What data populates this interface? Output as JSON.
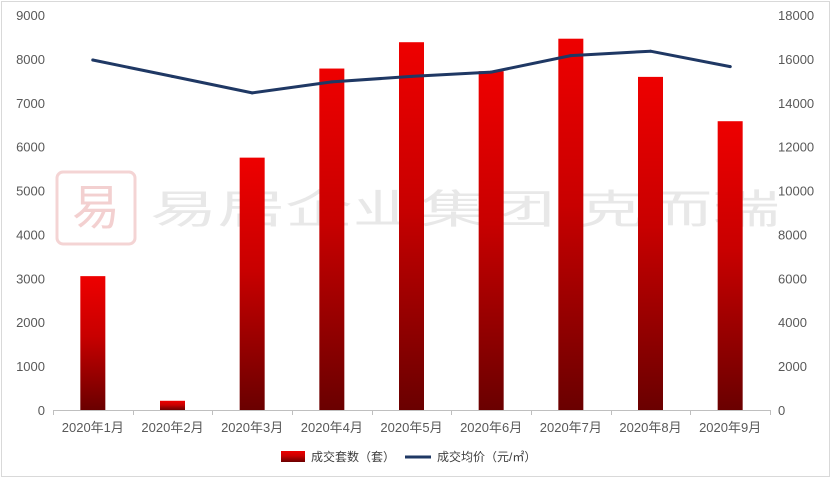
{
  "watermark": {
    "text": "易居企业集团·克而瑞",
    "logo_char": "易"
  },
  "chart_data": {
    "type": "bar",
    "categories": [
      "2020年1月",
      "2020年2月",
      "2020年3月",
      "2020年4月",
      "2020年5月",
      "2020年6月",
      "2020年7月",
      "2020年8月",
      "2020年9月"
    ],
    "series": [
      {
        "name": "成交套数（套）",
        "type": "bar",
        "axis": "left",
        "color": "#e00000",
        "values": [
          3050,
          210,
          5750,
          7780,
          8380,
          7720,
          8460,
          7590,
          6580
        ]
      },
      {
        "name": "成交均价（元/㎡）",
        "type": "line",
        "axis": "right",
        "color": "#1f3864",
        "values": [
          15950,
          15200,
          14450,
          14950,
          15200,
          15400,
          16150,
          16350,
          15650
        ]
      }
    ],
    "y_left": {
      "min": 0,
      "max": 9000,
      "step": 1000,
      "ticks": [
        "0",
        "1000",
        "2000",
        "3000",
        "4000",
        "5000",
        "6000",
        "7000",
        "8000",
        "9000"
      ]
    },
    "y_right": {
      "min": 0,
      "max": 18000,
      "step": 2000,
      "ticks": [
        "0",
        "2000",
        "4000",
        "6000",
        "8000",
        "10000",
        "12000",
        "14000",
        "16000",
        "18000"
      ]
    },
    "grid": false,
    "legend_position": "bottom"
  }
}
